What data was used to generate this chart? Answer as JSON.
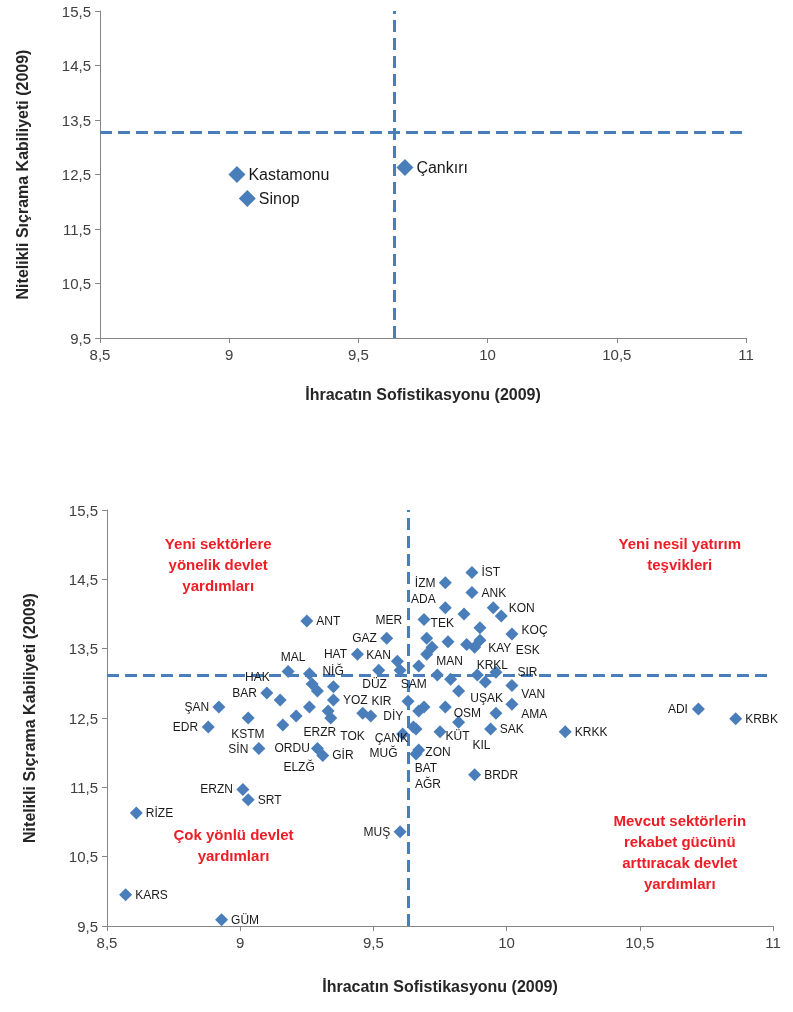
{
  "chart_data": [
    {
      "type": "scatter",
      "xlabel": "İhracatın Sofistikasyonu (2009)",
      "ylabel": "Nitelikli Sıçrama Kabiliyeti (2009)",
      "x": [
        9.03,
        9.07,
        9.68
      ],
      "values": [
        12.5,
        12.06,
        12.63
      ],
      "color": "#4a7ebb",
      "marker": "diamond",
      "xlim": [
        8.5,
        11
      ],
      "ylim": [
        9.5,
        15.5
      ],
      "xticks": [
        {
          "value": 8.5,
          "label": "8,5"
        },
        9,
        {
          "value": 9.5,
          "label": "9,5"
        },
        10,
        {
          "value": 10.5,
          "label": "10,5"
        },
        11
      ],
      "yticks": [
        {
          "value": 9.5,
          "label": "9,5"
        },
        {
          "value": 10.5,
          "label": "10,5"
        },
        {
          "value": 11.5,
          "label": "11,5"
        },
        {
          "value": 12.5,
          "label": "12,5"
        },
        {
          "value": 13.5,
          "label": "13,5"
        },
        {
          "value": 14.5,
          "label": "14,5"
        },
        {
          "value": 15.5,
          "label": "15,5"
        }
      ],
      "ref_lines": [
        {
          "axis": "x",
          "value": 9.64,
          "color": "#4a7ebb",
          "line_style": "dashed"
        },
        {
          "axis": "y",
          "value": 13.27,
          "color": "#4a7ebb",
          "line_style": "dashed"
        }
      ],
      "annotations": [
        {
          "text": "Kastamonu",
          "x": 9.03,
          "y": 12.5
        },
        {
          "text": "Sinop",
          "x": 9.07,
          "y": 12.06
        },
        {
          "text": "Çankırı",
          "x": 9.68,
          "y": 12.63
        }
      ]
    },
    {
      "type": "scatter",
      "xlabel": "İhracatın Sofistikasyonu (2009)",
      "ylabel": "Nitelikli Sıçrama Kabiliyeti (2009)",
      "x": [
        9.87,
        9.77,
        9.87,
        9.77,
        9.95,
        9.84,
        9.98,
        9.69,
        9.9,
        10.02,
        9.55,
        9.7,
        9.78,
        9.85,
        9.9,
        9.72,
        9.88,
        9.7,
        9.25,
        9.44,
        9.59,
        9.67,
        9.18,
        9.26,
        9.27,
        9.35,
        9.52,
        9.6,
        9.74,
        9.79,
        9.89,
        9.96,
        9.92,
        10.02,
        9.82,
        9.1,
        9.15,
        9.26,
        9.35,
        8.92,
        9.03,
        9.16,
        9.33,
        9.46,
        9.49,
        8.88,
        9.07,
        9.29,
        9.31,
        9.01,
        9.03,
        8.61,
        9.6,
        8.57,
        8.93,
        9.69,
        9.63,
        9.77,
        9.67,
        9.82,
        10.02,
        9.96,
        9.65,
        9.61,
        9.66,
        9.67,
        9.66,
        9.88,
        10.22,
        10.72,
        10.86,
        9.29,
        9.21,
        9.34,
        9.94,
        9.75
      ],
      "values": [
        14.6,
        14.45,
        14.31,
        14.09,
        14.09,
        14.0,
        13.97,
        13.92,
        13.8,
        13.71,
        13.65,
        13.65,
        13.6,
        13.56,
        13.62,
        13.52,
        13.52,
        13.42,
        13.9,
        13.42,
        13.32,
        13.25,
        13.17,
        13.14,
        12.99,
        12.95,
        13.19,
        13.19,
        13.12,
        13.06,
        13.12,
        13.16,
        13.02,
        12.97,
        12.89,
        12.86,
        12.76,
        12.66,
        12.76,
        12.66,
        12.5,
        12.4,
        12.6,
        12.57,
        12.53,
        12.37,
        12.06,
        12.06,
        11.96,
        11.47,
        11.32,
        11.13,
        10.86,
        9.95,
        9.59,
        12.66,
        12.74,
        12.66,
        12.6,
        12.44,
        12.7,
        12.57,
        12.37,
        12.27,
        12.34,
        12.04,
        11.98,
        11.68,
        12.3,
        12.63,
        12.49,
        12.89,
        12.53,
        12.5,
        12.34,
        12.3
      ],
      "color": "#4a7ebb",
      "marker": "diamond",
      "xlim": [
        8.5,
        11
      ],
      "ylim": [
        9.5,
        15.5
      ],
      "xticks": [
        {
          "value": 8.5,
          "label": "8,5"
        },
        9,
        {
          "value": 9.5,
          "label": "9,5"
        },
        10,
        {
          "value": 10.5,
          "label": "10,5"
        },
        11
      ],
      "yticks": [
        {
          "value": 9.5,
          "label": "9,5"
        },
        {
          "value": 10.5,
          "label": "10,5"
        },
        {
          "value": 11.5,
          "label": "11,5"
        },
        {
          "value": 12.5,
          "label": "12,5"
        },
        {
          "value": 13.5,
          "label": "13,5"
        },
        {
          "value": 14.5,
          "label": "14,5"
        },
        {
          "value": 15.5,
          "label": "15,5"
        }
      ],
      "ref_lines": [
        {
          "axis": "x",
          "value": 9.63,
          "color": "#4a7ebb",
          "line_style": "dashed"
        },
        {
          "axis": "y",
          "value": 13.12,
          "color": "#4a7ebb",
          "line_style": "dashed"
        }
      ],
      "annotations": [
        "Yeni sektörlere yönelik devlet yardımları",
        "Yeni nesil yatırım teşvikleri",
        "Çok yönlü devlet yardımları",
        "Mevcut sektörlerin rekabet gücünü arttıracak devlet yardımları",
        {
          "text": "İST",
          "x": 9.87,
          "y": 14.6
        },
        {
          "text": "İZM",
          "x": 9.77,
          "y": 14.45
        },
        {
          "text": "ANK",
          "x": 9.87,
          "y": 14.31
        },
        {
          "text": "ADA",
          "x": 9.77,
          "y": 14.09
        },
        {
          "text": "KON",
          "x": 9.95,
          "y": 14.09
        },
        {
          "text": "TEK",
          "x": 9.84,
          "y": 14.0
        },
        {
          "text": "KOÇ",
          "x": 9.98,
          "y": 13.97
        },
        {
          "text": "MER",
          "x": 9.69,
          "y": 13.92
        },
        {
          "text": "KAY",
          "x": 9.9,
          "y": 13.8
        },
        {
          "text": "ESK",
          "x": 10.02,
          "y": 13.71
        },
        {
          "text": "GAZ",
          "x": 9.55,
          "y": 13.65
        },
        {
          "text": "MAN",
          "x": 9.7,
          "y": 13.65
        },
        {
          "text": "KRKL",
          "x": 9.88,
          "y": 13.52
        },
        {
          "text": "SAM",
          "x": 9.7,
          "y": 13.42
        },
        {
          "text": "ANT",
          "x": 9.25,
          "y": 13.9
        },
        {
          "text": "HAT",
          "x": 9.44,
          "y": 13.42
        },
        {
          "text": "DÜZ",
          "x": 9.59,
          "y": 13.32
        },
        {
          "text": "MAL",
          "x": 9.26,
          "y": 13.14
        },
        {
          "text": "NİĞ",
          "x": 9.35,
          "y": 12.95
        },
        {
          "text": "KAN",
          "x": 9.52,
          "y": 13.19
        },
        {
          "text": "UŞAK",
          "x": 9.89,
          "y": 13.12
        },
        {
          "text": "SIR",
          "x": 9.96,
          "y": 13.16
        },
        {
          "text": "VAN",
          "x": 10.02,
          "y": 12.97
        },
        {
          "text": "OSM",
          "x": 9.82,
          "y": 12.89
        },
        {
          "text": "BAR",
          "x": 9.1,
          "y": 12.86
        },
        {
          "text": "HAK",
          "x": 9.15,
          "y": 12.76
        },
        {
          "text": "ERZR",
          "x": 9.26,
          "y": 12.66
        },
        {
          "text": "YOZ",
          "x": 9.35,
          "y": 12.76
        },
        {
          "text": "ŞAN",
          "x": 8.92,
          "y": 12.66
        },
        {
          "text": "KSTM",
          "x": 9.03,
          "y": 12.5
        },
        {
          "text": "ORDU",
          "x": 9.16,
          "y": 12.4
        },
        {
          "text": "TOK",
          "x": 9.33,
          "y": 12.6
        },
        {
          "text": "DİY",
          "x": 9.49,
          "y": 12.53
        },
        {
          "text": "EDR",
          "x": 8.88,
          "y": 12.37
        },
        {
          "text": "SİN",
          "x": 9.07,
          "y": 12.06
        },
        {
          "text": "ELZĞ",
          "x": 9.29,
          "y": 12.06
        },
        {
          "text": "GİR",
          "x": 9.31,
          "y": 11.96
        },
        {
          "text": "ERZN",
          "x": 9.01,
          "y": 11.47
        },
        {
          "text": "SRT",
          "x": 9.03,
          "y": 11.32
        },
        {
          "text": "RİZE",
          "x": 8.61,
          "y": 11.13
        },
        {
          "text": "MUŞ",
          "x": 9.6,
          "y": 10.86
        },
        {
          "text": "KARS",
          "x": 8.57,
          "y": 9.95
        },
        {
          "text": "GÜM",
          "x": 8.93,
          "y": 9.59
        },
        {
          "text": "KIR",
          "x": 9.63,
          "y": 12.74
        },
        {
          "text": "KÜT",
          "x": 9.77,
          "y": 12.66
        },
        {
          "text": "ÇANK",
          "x": 9.67,
          "y": 12.6
        },
        {
          "text": "KIL",
          "x": 9.82,
          "y": 12.44
        },
        {
          "text": "AMA",
          "x": 10.02,
          "y": 12.7
        },
        {
          "text": "SAK",
          "x": 9.96,
          "y": 12.57
        },
        {
          "text": "ZON",
          "x": 9.65,
          "y": 12.37
        },
        {
          "text": "MUĞ",
          "x": 9.61,
          "y": 12.27
        },
        {
          "text": "BAT",
          "x": 9.67,
          "y": 12.04
        },
        {
          "text": "AĞR",
          "x": 9.66,
          "y": 11.98
        },
        {
          "text": "BRDR",
          "x": 9.88,
          "y": 11.68
        },
        {
          "text": "KRKK",
          "x": 10.22,
          "y": 12.3
        },
        {
          "text": "ADI",
          "x": 10.72,
          "y": 12.63
        },
        {
          "text": "KRBK",
          "x": 10.86,
          "y": 12.49
        }
      ]
    }
  ]
}
